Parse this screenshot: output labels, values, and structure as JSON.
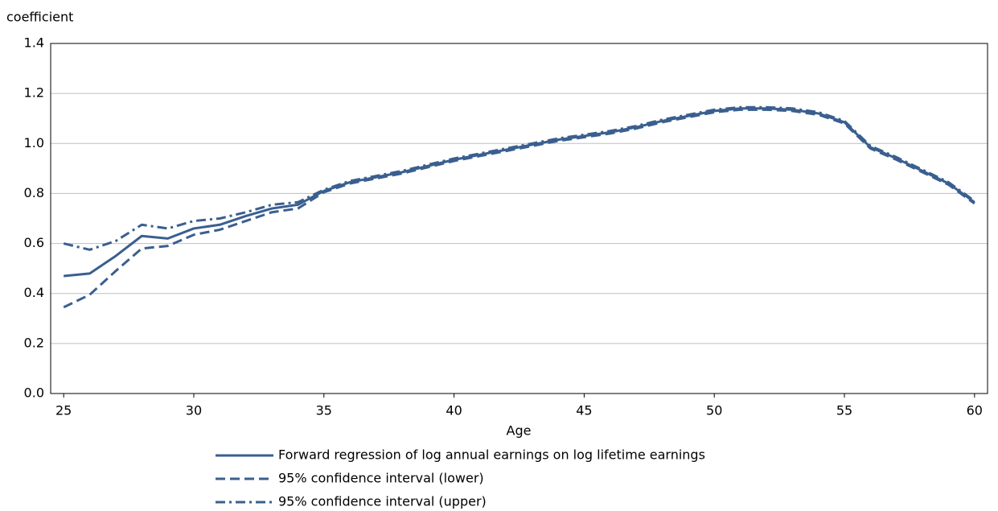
{
  "chart_data": {
    "type": "line",
    "y_label": "coefficient",
    "x_label": "Age",
    "x": [
      25,
      26,
      27,
      28,
      29,
      30,
      31,
      32,
      33,
      34,
      35,
      36,
      37,
      38,
      39,
      40,
      41,
      42,
      43,
      44,
      45,
      46,
      47,
      48,
      49,
      50,
      51,
      52,
      53,
      54,
      55,
      56,
      57,
      58,
      59,
      60
    ],
    "series": [
      {
        "name": "Forward regression of log annual earnings on log lifetime earnings",
        "color": "#3a5f8f",
        "dash": "solid",
        "values": [
          0.47,
          0.48,
          0.55,
          0.63,
          0.62,
          0.66,
          0.675,
          0.71,
          0.74,
          0.755,
          0.81,
          0.845,
          0.865,
          0.885,
          0.91,
          0.935,
          0.955,
          0.975,
          0.995,
          1.015,
          1.03,
          1.045,
          1.065,
          1.09,
          1.11,
          1.13,
          1.14,
          1.14,
          1.135,
          1.12,
          1.085,
          0.985,
          0.94,
          0.89,
          0.84,
          0.765
        ]
      },
      {
        "name": "95% confidence interval (lower)",
        "color": "#3a5f8f",
        "dash": "dashed",
        "values": [
          0.345,
          0.395,
          0.49,
          0.58,
          0.59,
          0.635,
          0.655,
          0.69,
          0.725,
          0.74,
          0.805,
          0.84,
          0.86,
          0.88,
          0.905,
          0.93,
          0.95,
          0.97,
          0.99,
          1.01,
          1.025,
          1.04,
          1.06,
          1.085,
          1.105,
          1.125,
          1.135,
          1.135,
          1.13,
          1.115,
          1.08,
          0.98,
          0.935,
          0.885,
          0.835,
          0.76
        ]
      },
      {
        "name": "95% confidence interval (upper)",
        "color": "#3a5f8f",
        "dash": "dashdot",
        "values": [
          0.6,
          0.575,
          0.61,
          0.675,
          0.66,
          0.69,
          0.7,
          0.725,
          0.755,
          0.765,
          0.815,
          0.85,
          0.87,
          0.89,
          0.915,
          0.94,
          0.96,
          0.98,
          1.0,
          1.02,
          1.035,
          1.05,
          1.07,
          1.095,
          1.115,
          1.135,
          1.145,
          1.145,
          1.14,
          1.125,
          1.09,
          0.99,
          0.945,
          0.895,
          0.845,
          0.77
        ]
      }
    ],
    "xlim": [
      24.5,
      60.5
    ],
    "xticks": [
      25,
      30,
      35,
      40,
      45,
      50,
      55,
      60
    ],
    "ylim": [
      0,
      1.4
    ],
    "yticks": [
      {
        "value": 0,
        "label": "0.0"
      },
      0.2,
      0.4,
      0.6,
      0.8,
      {
        "value": 1,
        "label": "1.0"
      },
      1.2,
      1.4
    ],
    "grid": true,
    "legend": "bottom"
  }
}
